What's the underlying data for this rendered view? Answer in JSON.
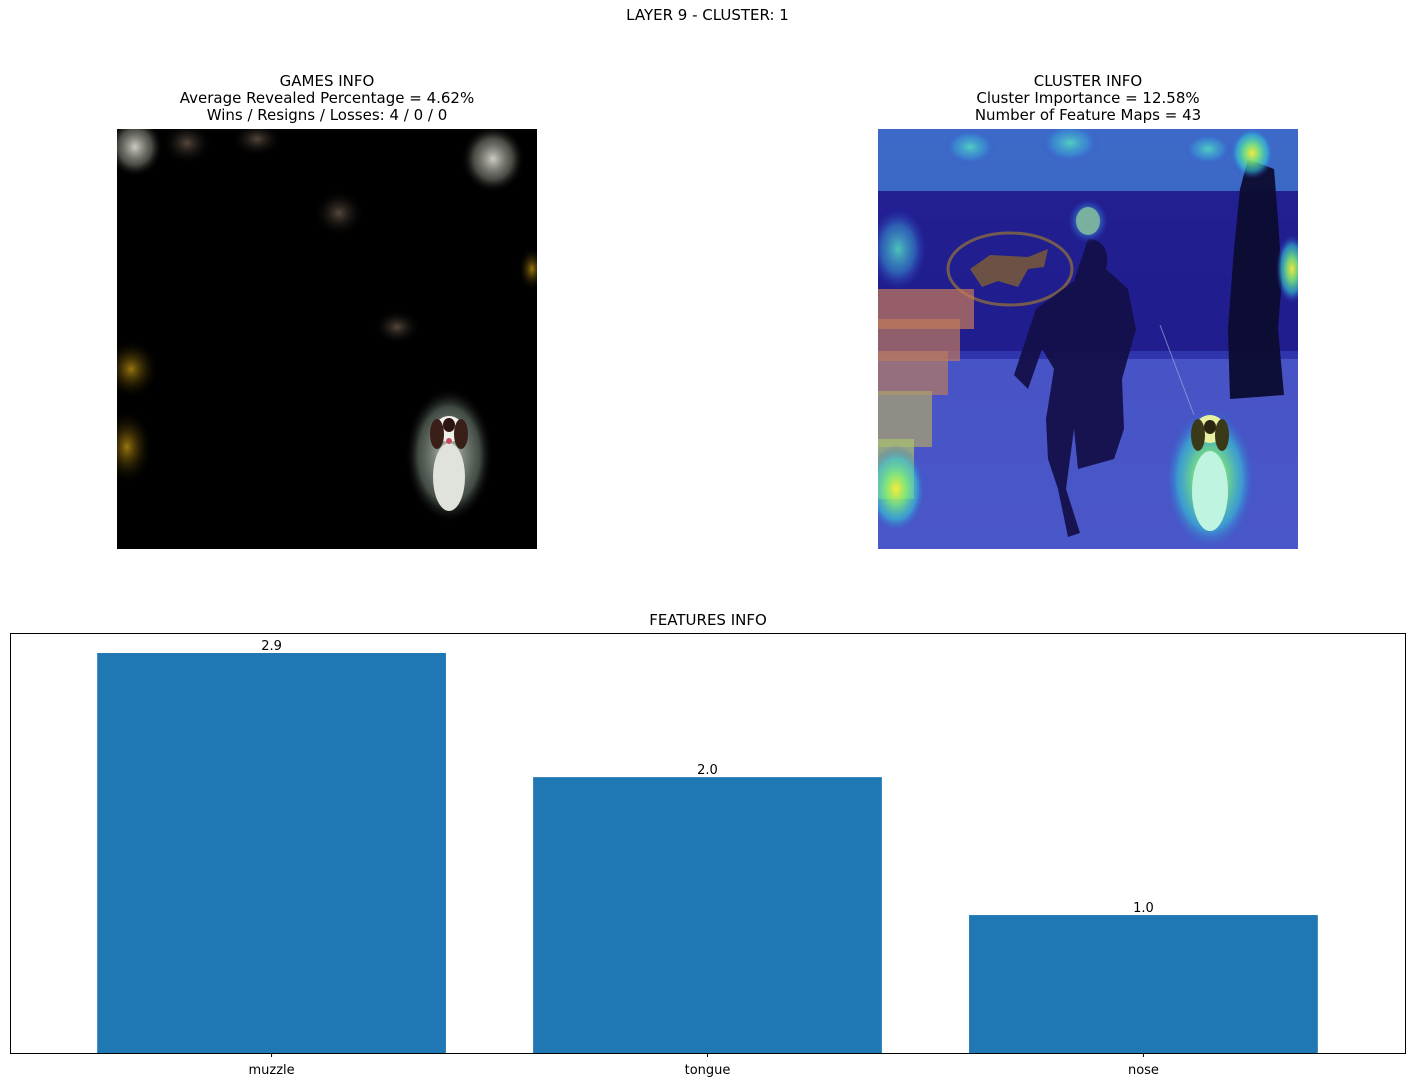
{
  "figure": {
    "title": "LAYER 9 - CLUSTER: 1"
  },
  "games_panel": {
    "title": "GAMES INFO",
    "line1": "Average Revealed Percentage = 4.62%",
    "line2": "Wins / Resigns / Losses: 4 / 0 / 0"
  },
  "cluster_panel": {
    "title": "CLUSTER INFO",
    "line1": "Cluster Importance = 12.58%",
    "line2": "Number of Feature Maps = 43"
  },
  "chart_data": {
    "type": "bar",
    "title": "FEATURES INFO",
    "categories": [
      "muzzle",
      "tongue",
      "nose"
    ],
    "values": [
      2.9,
      2.0,
      1.0
    ],
    "value_labels": [
      "2.9",
      "2.0",
      "1.0"
    ],
    "xlabel": "",
    "ylabel": "",
    "ylim": [
      0,
      3.045
    ],
    "y_ticks_visible": false,
    "grid": false,
    "legend": "none",
    "bar_color": "#1f77b4"
  }
}
